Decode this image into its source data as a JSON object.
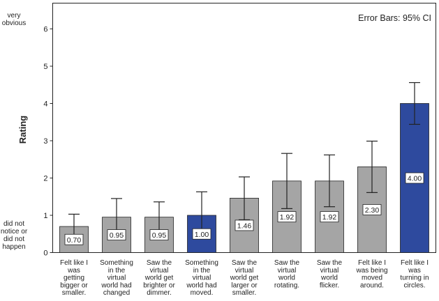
{
  "chart_data": {
    "type": "bar",
    "ylabel": "Rating",
    "ylim": [
      0,
      6.5
    ],
    "yticks": [
      0,
      1,
      2,
      3,
      4,
      5,
      6
    ],
    "annotation": "Error Bars: 95% CI",
    "y_anchor_labels": {
      "top": [
        "very",
        "obvious"
      ],
      "bottom": [
        "did not",
        "notice or",
        "did not",
        "happen"
      ]
    },
    "categories": [
      [
        "Felt like I",
        "was",
        "getting",
        "bigger or",
        "smaller."
      ],
      [
        "Something",
        "in the",
        "virtual",
        "world had",
        "changed"
      ],
      [
        "Saw the",
        "virtual",
        "world get",
        "brighter or",
        "dimmer."
      ],
      [
        "Something",
        "in the",
        "virtual",
        "world had",
        "moved."
      ],
      [
        "Saw the",
        "virtual",
        "world get",
        "larger or",
        "smaller."
      ],
      [
        "Saw the",
        "virtual",
        "world",
        "rotating."
      ],
      [
        "Saw the",
        "virtual",
        "world",
        "flicker."
      ],
      [
        "Felt like I",
        "was being",
        "moved",
        "around."
      ],
      [
        "Felt like I",
        "was",
        "turning in",
        "circles."
      ]
    ],
    "values": [
      0.7,
      0.95,
      0.95,
      1.0,
      1.46,
      1.92,
      1.92,
      2.3,
      4.0
    ],
    "value_labels": [
      "0.70",
      "0.95",
      "0.95",
      "1.00",
      "1.46",
      "1.92",
      "1.92",
      "2.30",
      "4.00"
    ],
    "ci_low": [
      0.38,
      0.43,
      0.53,
      0.37,
      0.88,
      1.18,
      1.23,
      1.61,
      3.44
    ],
    "ci_high": [
      1.03,
      1.45,
      1.36,
      1.63,
      2.03,
      2.66,
      2.62,
      2.99,
      4.56
    ],
    "highlighted": [
      false,
      false,
      false,
      true,
      false,
      false,
      false,
      false,
      true
    ],
    "colors": {
      "default_bar": "#a5a5a5",
      "highlight_bar": "#2e4a9e",
      "axis": "#222222"
    },
    "grid": false
  }
}
